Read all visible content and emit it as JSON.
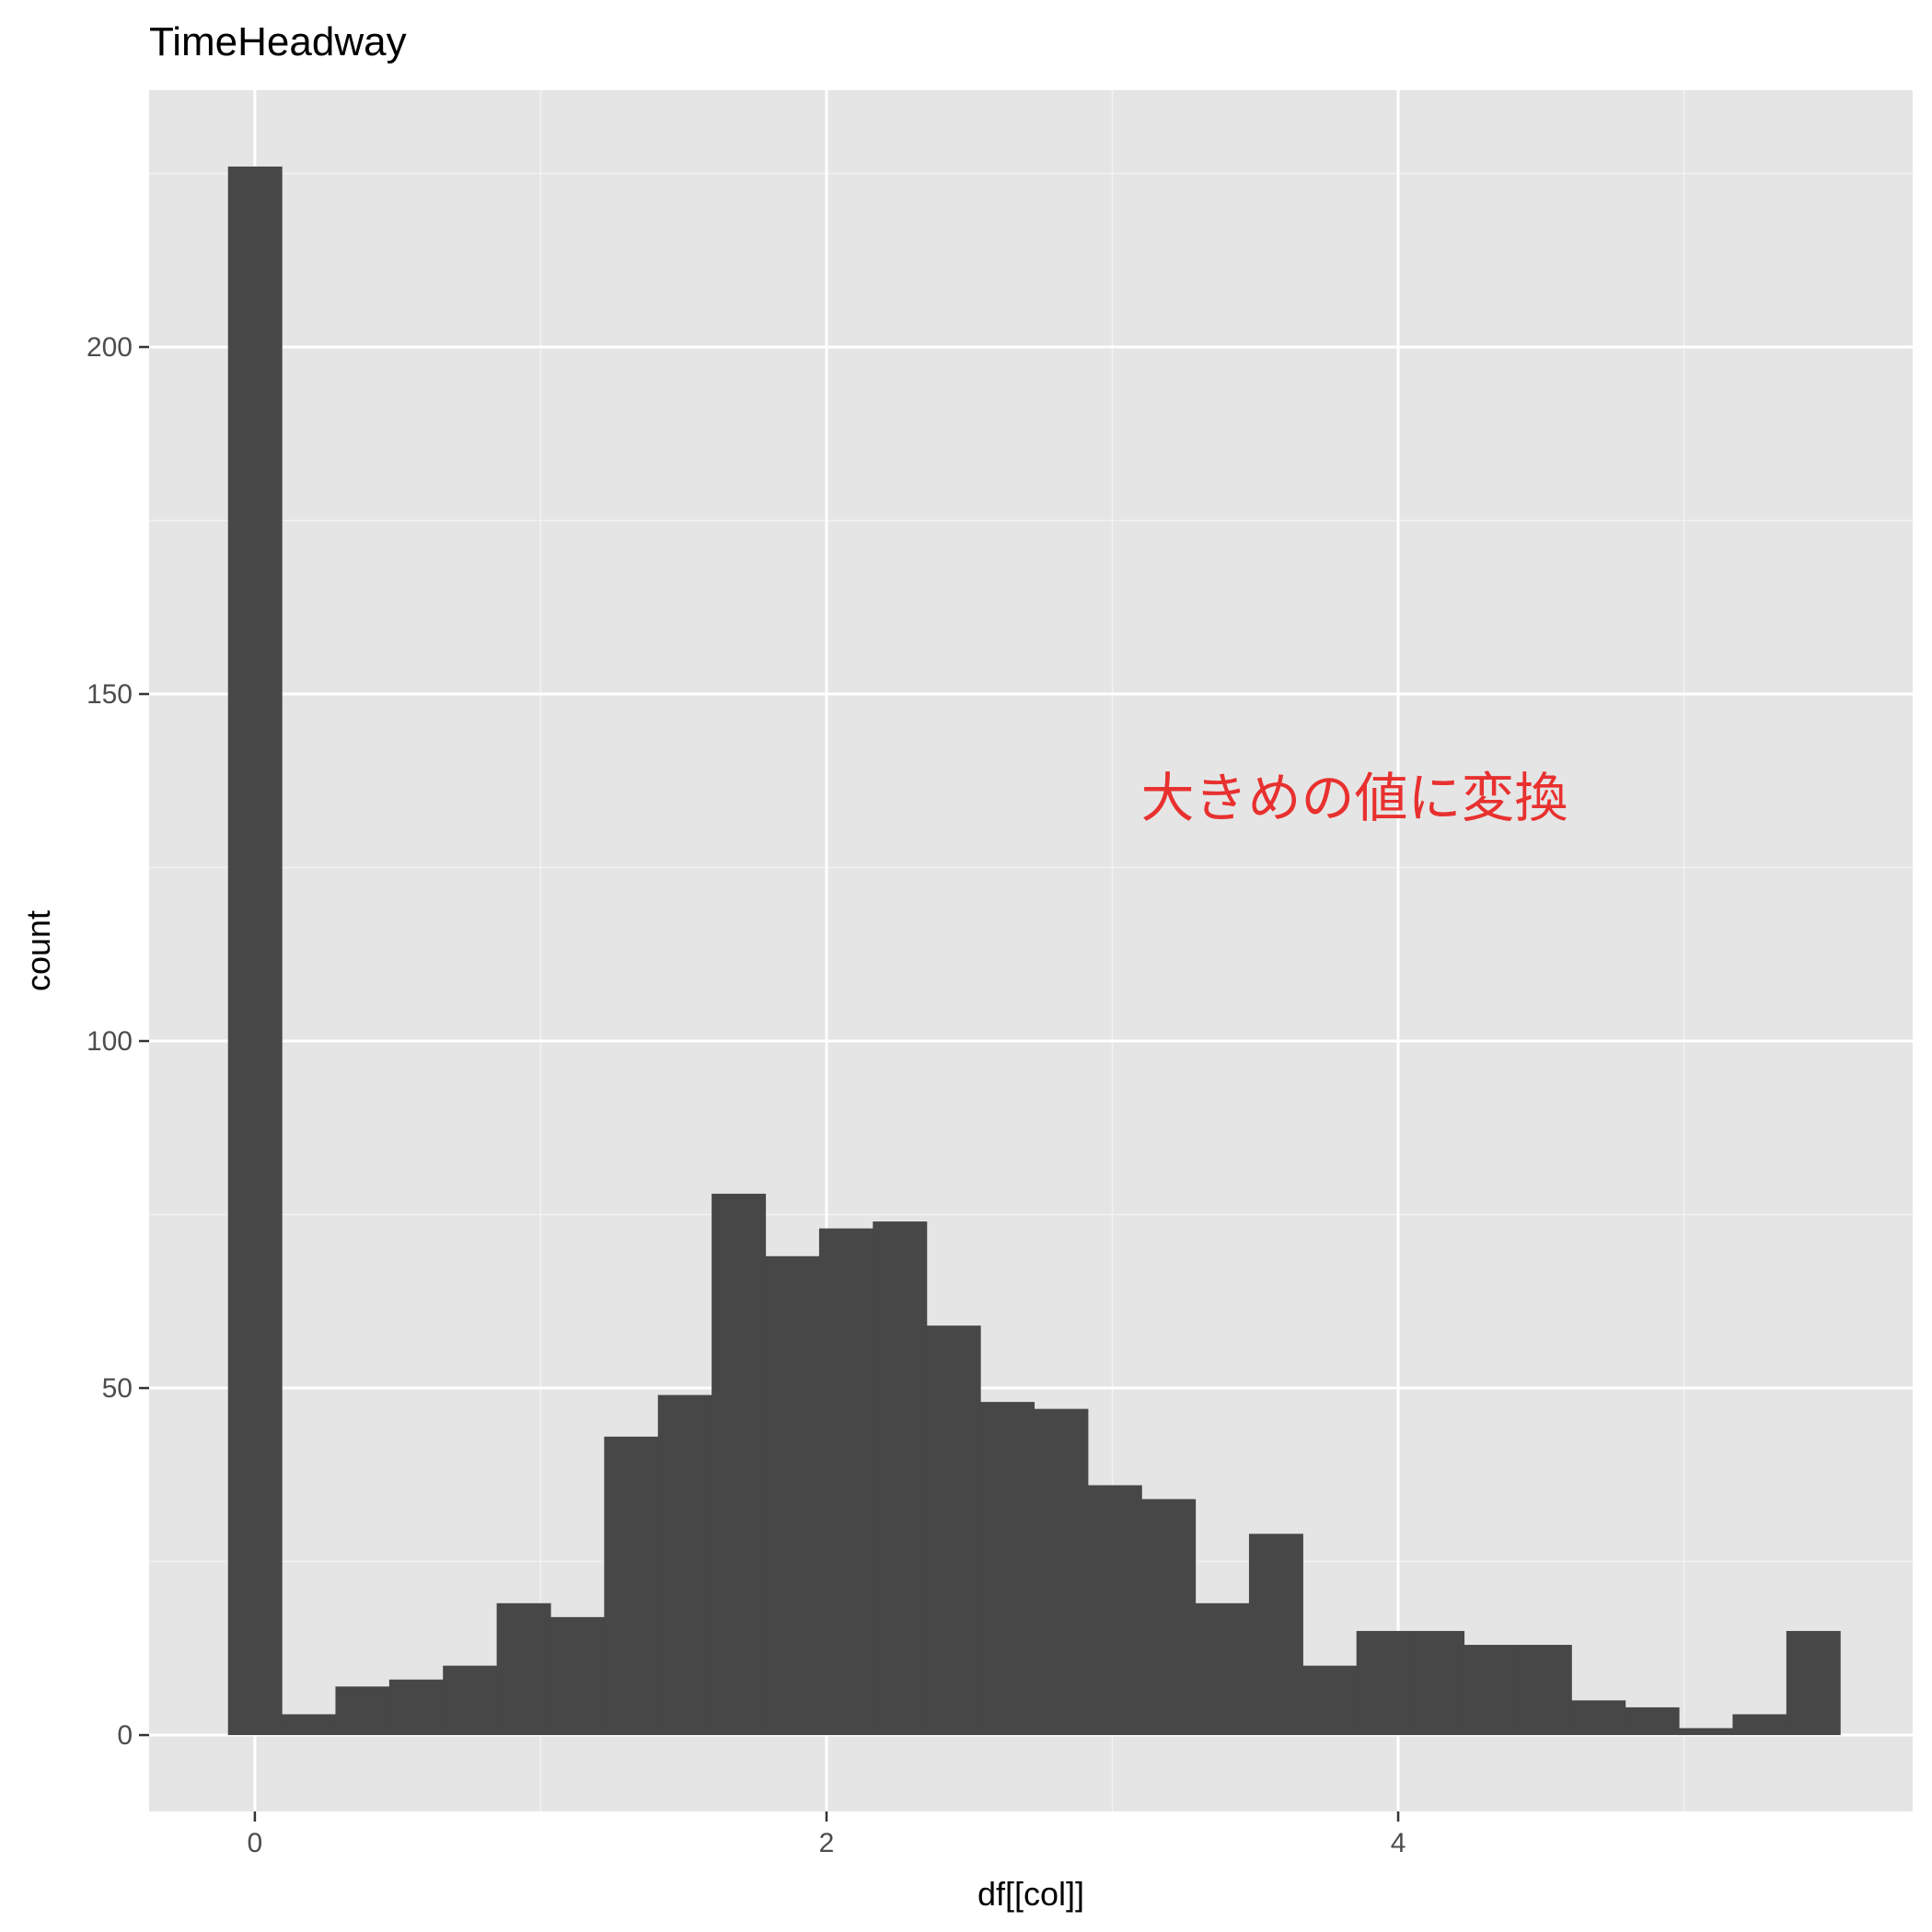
{
  "chart_data": {
    "type": "bar",
    "title": "TimeHeadway",
    "xlabel": "df[[col]]",
    "ylabel": "count",
    "xlim": [
      -0.37,
      5.8
    ],
    "ylim": [
      -11,
      237
    ],
    "x_ticks": [
      0,
      2,
      4
    ],
    "y_ticks": [
      0,
      50,
      100,
      150,
      200
    ],
    "x_minor_ticks": [
      1,
      3,
      5
    ],
    "y_minor_ticks": [
      25,
      75,
      125,
      175,
      225
    ],
    "grid": true,
    "legend": "none",
    "bin_width": 0.188,
    "bin_start": -0.094,
    "values": [
      226,
      3,
      7,
      8,
      10,
      19,
      17,
      43,
      49,
      78,
      69,
      73,
      74,
      59,
      48,
      47,
      36,
      34,
      19,
      29,
      10,
      15,
      15,
      13,
      13,
      5,
      4,
      1,
      3,
      15
    ],
    "bar_color": "#474747",
    "panel_color": "#e5e5e5",
    "annotation": {
      "text": "大きめの値に変換",
      "x": 3.1,
      "y": 135,
      "color": "#e8312f"
    }
  }
}
